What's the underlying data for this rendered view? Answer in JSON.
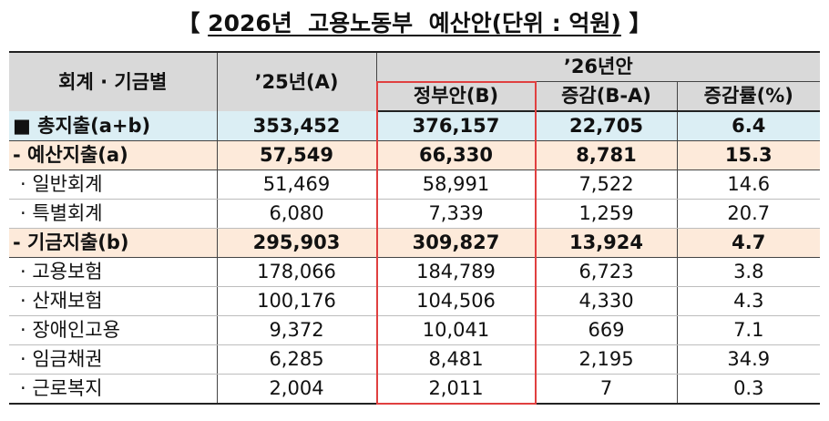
{
  "title": {
    "open_bracket": "【",
    "text": "2026년  고용노동부  예산안(단위 : 억원)",
    "close_bracket": "】"
  },
  "header": {
    "col_category": "회계 · 기금별",
    "col_2025": "’25년(A)",
    "group_2026": "’26년안",
    "col_gov": "정부안(B)",
    "col_change": "증감(B-A)",
    "col_rate": "증감률(%)"
  },
  "rows": [
    {
      "label": "■ 총지출(a+b)",
      "y2025": "353,452",
      "gov": "376,157",
      "change": "22,705",
      "rate": "6.4"
    },
    {
      "label": "- 예산지출(a)",
      "y2025": "57,549",
      "gov": "66,330",
      "change": "8,781",
      "rate": "15.3"
    },
    {
      "label": "· 일반회계",
      "y2025": "51,469",
      "gov": "58,991",
      "change": "7,522",
      "rate": "14.6"
    },
    {
      "label": "· 특별회계",
      "y2025": "6,080",
      "gov": "7,339",
      "change": "1,259",
      "rate": "20.7"
    },
    {
      "label": "- 기금지출(b)",
      "y2025": "295,903",
      "gov": "309,827",
      "change": "13,924",
      "rate": "4.7"
    },
    {
      "label": "· 고용보험",
      "y2025": "178,066",
      "gov": "184,789",
      "change": "6,723",
      "rate": "3.8"
    },
    {
      "label": "· 산재보험",
      "y2025": "100,176",
      "gov": "104,506",
      "change": "4,330",
      "rate": "4.3"
    },
    {
      "label": "· 장애인고용",
      "y2025": "9,372",
      "gov": "10,041",
      "change": "669",
      "rate": "7.1"
    },
    {
      "label": "· 임금채권",
      "y2025": "6,285",
      "gov": "8,481",
      "change": "2,195",
      "rate": "34.9"
    },
    {
      "label": "· 근로복지",
      "y2025": "2,004",
      "gov": "2,011",
      "change": "7",
      "rate": "0.3"
    }
  ],
  "colors": {
    "header_bg": "#d9d9d9",
    "total_row_bg": "#dbeef4",
    "subtotal_row_bg": "#fdeada",
    "highlight_border": "#e04040"
  }
}
